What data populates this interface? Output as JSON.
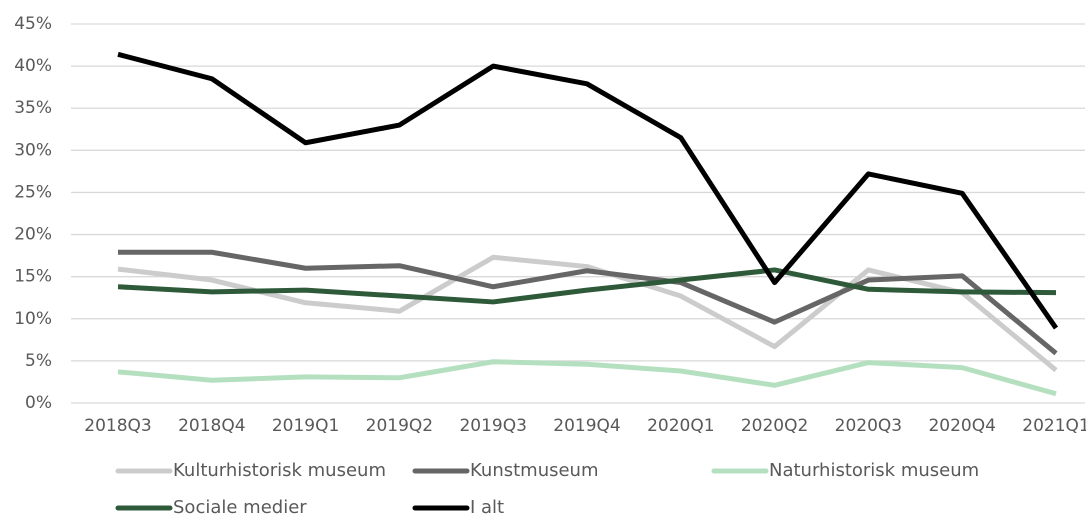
{
  "chart_data": {
    "type": "line",
    "categories": [
      "2018Q3",
      "2018Q4",
      "2019Q1",
      "2019Q2",
      "2019Q3",
      "2019Q4",
      "2020Q1",
      "2020Q2",
      "2020Q3",
      "2020Q4",
      "2021Q1"
    ],
    "series": [
      {
        "name": "Kulturhistorisk museum",
        "color": "#cccccc",
        "values": [
          15.9,
          14.6,
          11.9,
          10.9,
          17.3,
          16.2,
          12.7,
          6.7,
          15.8,
          13.1,
          3.9
        ]
      },
      {
        "name": "Kunstmuseum",
        "color": "#666666",
        "values": [
          17.9,
          17.9,
          16.0,
          16.3,
          13.8,
          15.7,
          14.3,
          9.6,
          14.6,
          15.1,
          5.9
        ]
      },
      {
        "name": "Naturhistorisk museum",
        "color": "#b5e0c0",
        "values": [
          3.7,
          2.7,
          3.1,
          3.0,
          4.9,
          4.6,
          3.8,
          2.1,
          4.8,
          4.2,
          1.1
        ]
      },
      {
        "name": "Sociale medier",
        "color": "#2e5a3a",
        "values": [
          13.8,
          13.2,
          13.4,
          12.7,
          12.0,
          13.4,
          14.6,
          15.8,
          13.5,
          13.2,
          13.1
        ]
      },
      {
        "name": "I alt",
        "color": "#000000",
        "values": [
          41.4,
          38.5,
          30.9,
          33.0,
          40.0,
          37.9,
          31.5,
          14.3,
          27.2,
          24.9,
          8.9
        ]
      }
    ],
    "ylim": [
      0,
      45
    ],
    "yticks": [
      {
        "value": 0,
        "label": "0%"
      },
      {
        "value": 5,
        "label": "5%"
      },
      {
        "value": 10,
        "label": "10%"
      },
      {
        "value": 15,
        "label": "15%"
      },
      {
        "value": 20,
        "label": "20%"
      },
      {
        "value": 25,
        "label": "25%"
      },
      {
        "value": 30,
        "label": "30%"
      },
      {
        "value": 35,
        "label": "35%"
      },
      {
        "value": 40,
        "label": "40%"
      },
      {
        "value": 45,
        "label": "45%"
      }
    ],
    "grid": true,
    "legend": "bottom"
  }
}
